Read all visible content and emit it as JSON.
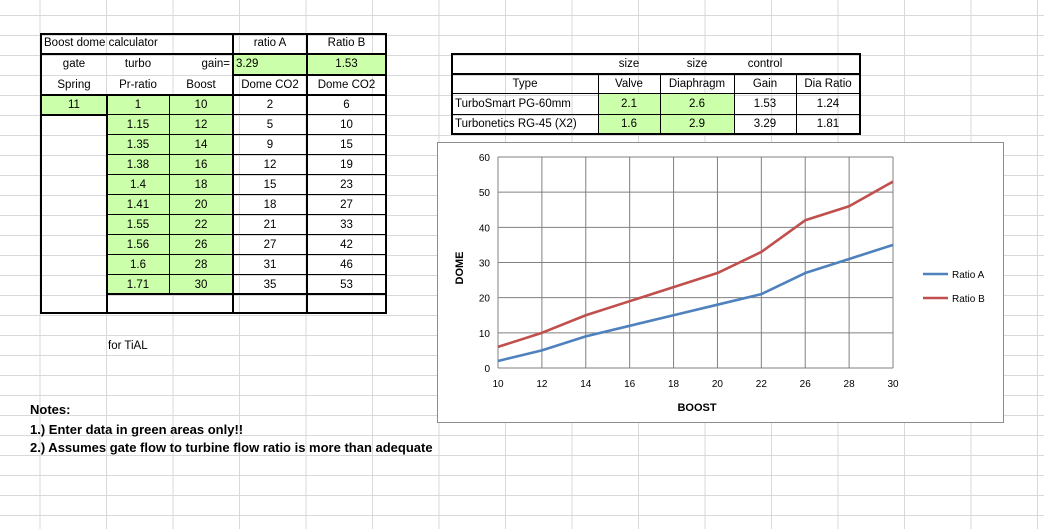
{
  "left_table": {
    "title": "Boost dome calculator",
    "ratio_a_label": "ratio A",
    "ratio_b_label": "Ratio B",
    "row2": {
      "gate": "gate",
      "turbo": "turbo",
      "gain_label": "gain=",
      "gain_a": "3.29",
      "gain_b": "1.53"
    },
    "headers": {
      "spring": "Spring",
      "pr": "Pr-ratio",
      "boost": "Boost",
      "dome_a": "Dome CO2",
      "dome_b": "Dome CO2"
    },
    "spring_value": "11",
    "rows": [
      {
        "pr": "1",
        "boost": "10",
        "dome_a": "2",
        "dome_b": "6"
      },
      {
        "pr": "1.15",
        "boost": "12",
        "dome_a": "5",
        "dome_b": "10"
      },
      {
        "pr": "1.35",
        "boost": "14",
        "dome_a": "9",
        "dome_b": "15"
      },
      {
        "pr": "1.38",
        "boost": "16",
        "dome_a": "12",
        "dome_b": "19"
      },
      {
        "pr": "1.4",
        "boost": "18",
        "dome_a": "15",
        "dome_b": "23"
      },
      {
        "pr": "1.41",
        "boost": "20",
        "dome_a": "18",
        "dome_b": "27"
      },
      {
        "pr": "1.55",
        "boost": "22",
        "dome_a": "21",
        "dome_b": "33"
      },
      {
        "pr": "1.56",
        "boost": "26",
        "dome_a": "27",
        "dome_b": "42"
      },
      {
        "pr": "1.6",
        "boost": "28",
        "dome_a": "31",
        "dome_b": "46"
      },
      {
        "pr": "1.71",
        "boost": "30",
        "dome_a": "35",
        "dome_b": "53"
      }
    ],
    "footnote": "for TiAL"
  },
  "right_table": {
    "row1": {
      "size1": "size",
      "size2": "size",
      "control": "control"
    },
    "headers": {
      "type": "Type",
      "valve": "Valve",
      "diaphragm": "Diaphragm",
      "gain": "Gain",
      "dia_ratio": "Dia Ratio"
    },
    "rows": [
      {
        "type": "TurboSmart PG-60mm",
        "valve": "2.1",
        "diaphragm": "2.6",
        "gain": "1.53",
        "dia_ratio": "1.24"
      },
      {
        "type": "Turbonetics RG-45 (X2)",
        "valve": "1.6",
        "diaphragm": "2.9",
        "gain": "3.29",
        "dia_ratio": "1.81"
      }
    ]
  },
  "notes": {
    "title": "Notes:",
    "line1": "1.) Enter data in green areas only!!",
    "line2": "2.) Assumes gate flow to turbine flow ratio is more than adequate"
  },
  "colors": {
    "input_green": "#ccffaa",
    "ratio_a": "#4f81bd",
    "ratio_b": "#c0504d"
  },
  "chart_data": {
    "type": "line",
    "title": "",
    "xlabel": "BOOST",
    "ylabel": "DOME",
    "categories": [
      "10",
      "12",
      "14",
      "16",
      "18",
      "20",
      "22",
      "26",
      "28",
      "30"
    ],
    "ylim": [
      0,
      60
    ],
    "yticks": [
      "0",
      "10",
      "20",
      "30",
      "40",
      "50",
      "60"
    ],
    "grid": true,
    "legend_position": "right",
    "series": [
      {
        "name": "Ratio A",
        "values": [
          2,
          5,
          9,
          12,
          15,
          18,
          21,
          27,
          31,
          35
        ]
      },
      {
        "name": "Ratio B",
        "values": [
          6,
          10,
          15,
          19,
          23,
          27,
          33,
          42,
          46,
          53
        ]
      }
    ]
  }
}
